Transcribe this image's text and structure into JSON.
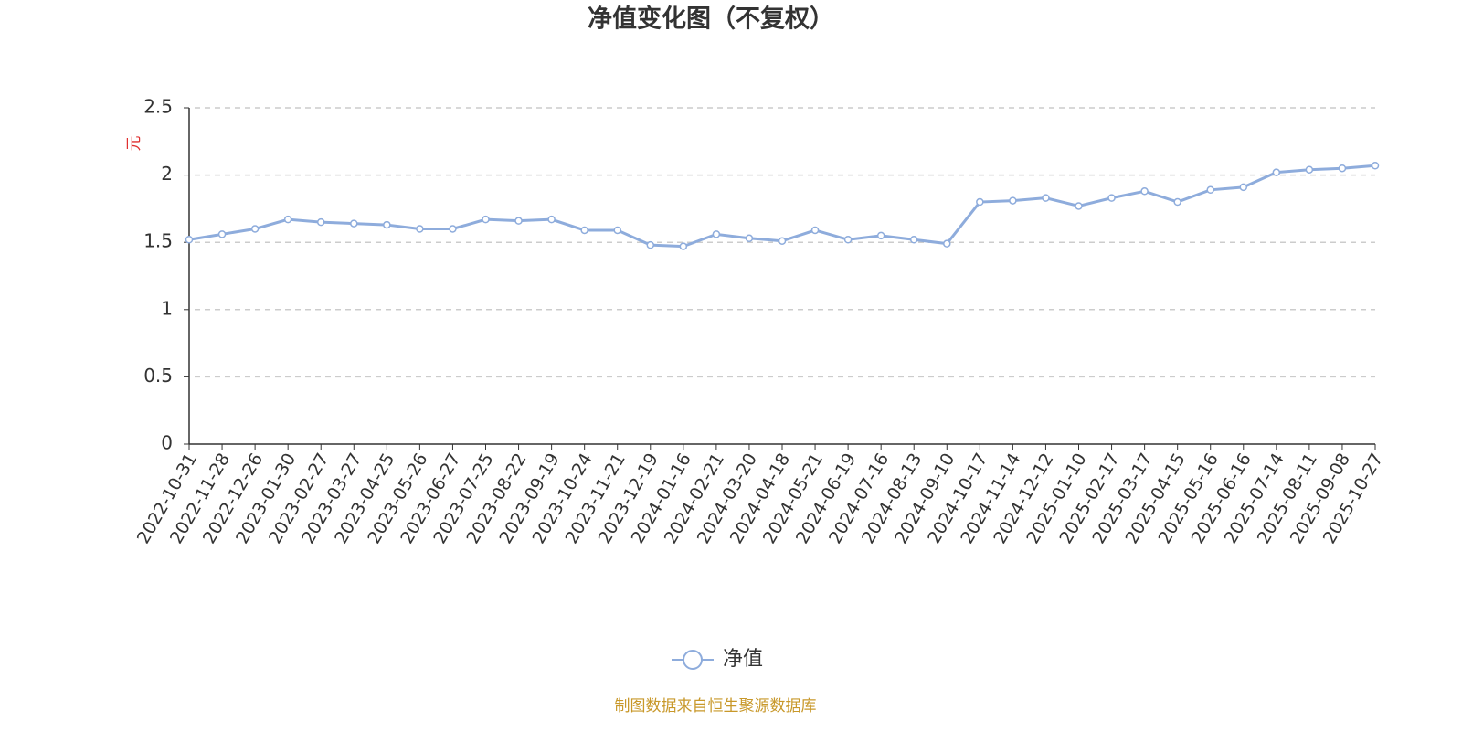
{
  "chart_data": {
    "type": "line",
    "title": "净值变化图（不复权）",
    "y_label": "元",
    "categories": [
      "2022-10-31",
      "2022-11-28",
      "2022-12-26",
      "2023-01-30",
      "2023-02-27",
      "2023-03-27",
      "2023-04-25",
      "2023-05-26",
      "2023-06-27",
      "2023-07-25",
      "2023-08-22",
      "2023-09-19",
      "2023-10-24",
      "2023-11-21",
      "2023-12-19",
      "2024-01-16",
      "2024-02-21",
      "2024-03-20",
      "2024-04-18",
      "2024-05-21",
      "2024-06-19",
      "2024-07-16",
      "2024-08-13",
      "2024-09-10",
      "2024-10-17",
      "2024-11-14",
      "2024-12-12",
      "2025-01-10",
      "2025-02-17",
      "2025-03-17",
      "2025-04-15",
      "2025-05-16",
      "2025-06-16",
      "2025-07-14",
      "2025-08-11",
      "2025-09-08",
      "2025-10-27"
    ],
    "series": [
      {
        "name": "净值",
        "color": "#8eacdc",
        "values": [
          1.52,
          1.56,
          1.6,
          1.67,
          1.65,
          1.64,
          1.63,
          1.6,
          1.6,
          1.67,
          1.66,
          1.67,
          1.59,
          1.59,
          1.48,
          1.47,
          1.56,
          1.53,
          1.51,
          1.59,
          1.52,
          1.55,
          1.52,
          1.49,
          1.8,
          1.81,
          1.83,
          1.77,
          1.83,
          1.88,
          1.8,
          1.89,
          1.91,
          2.02,
          2.04,
          2.05,
          2.07
        ]
      }
    ],
    "ylim": [
      0,
      2.5
    ],
    "yticks": [
      0,
      0.5,
      1,
      1.5,
      2,
      2.5
    ],
    "grid": true,
    "source": "制图数据来自恒生聚源数据库"
  }
}
